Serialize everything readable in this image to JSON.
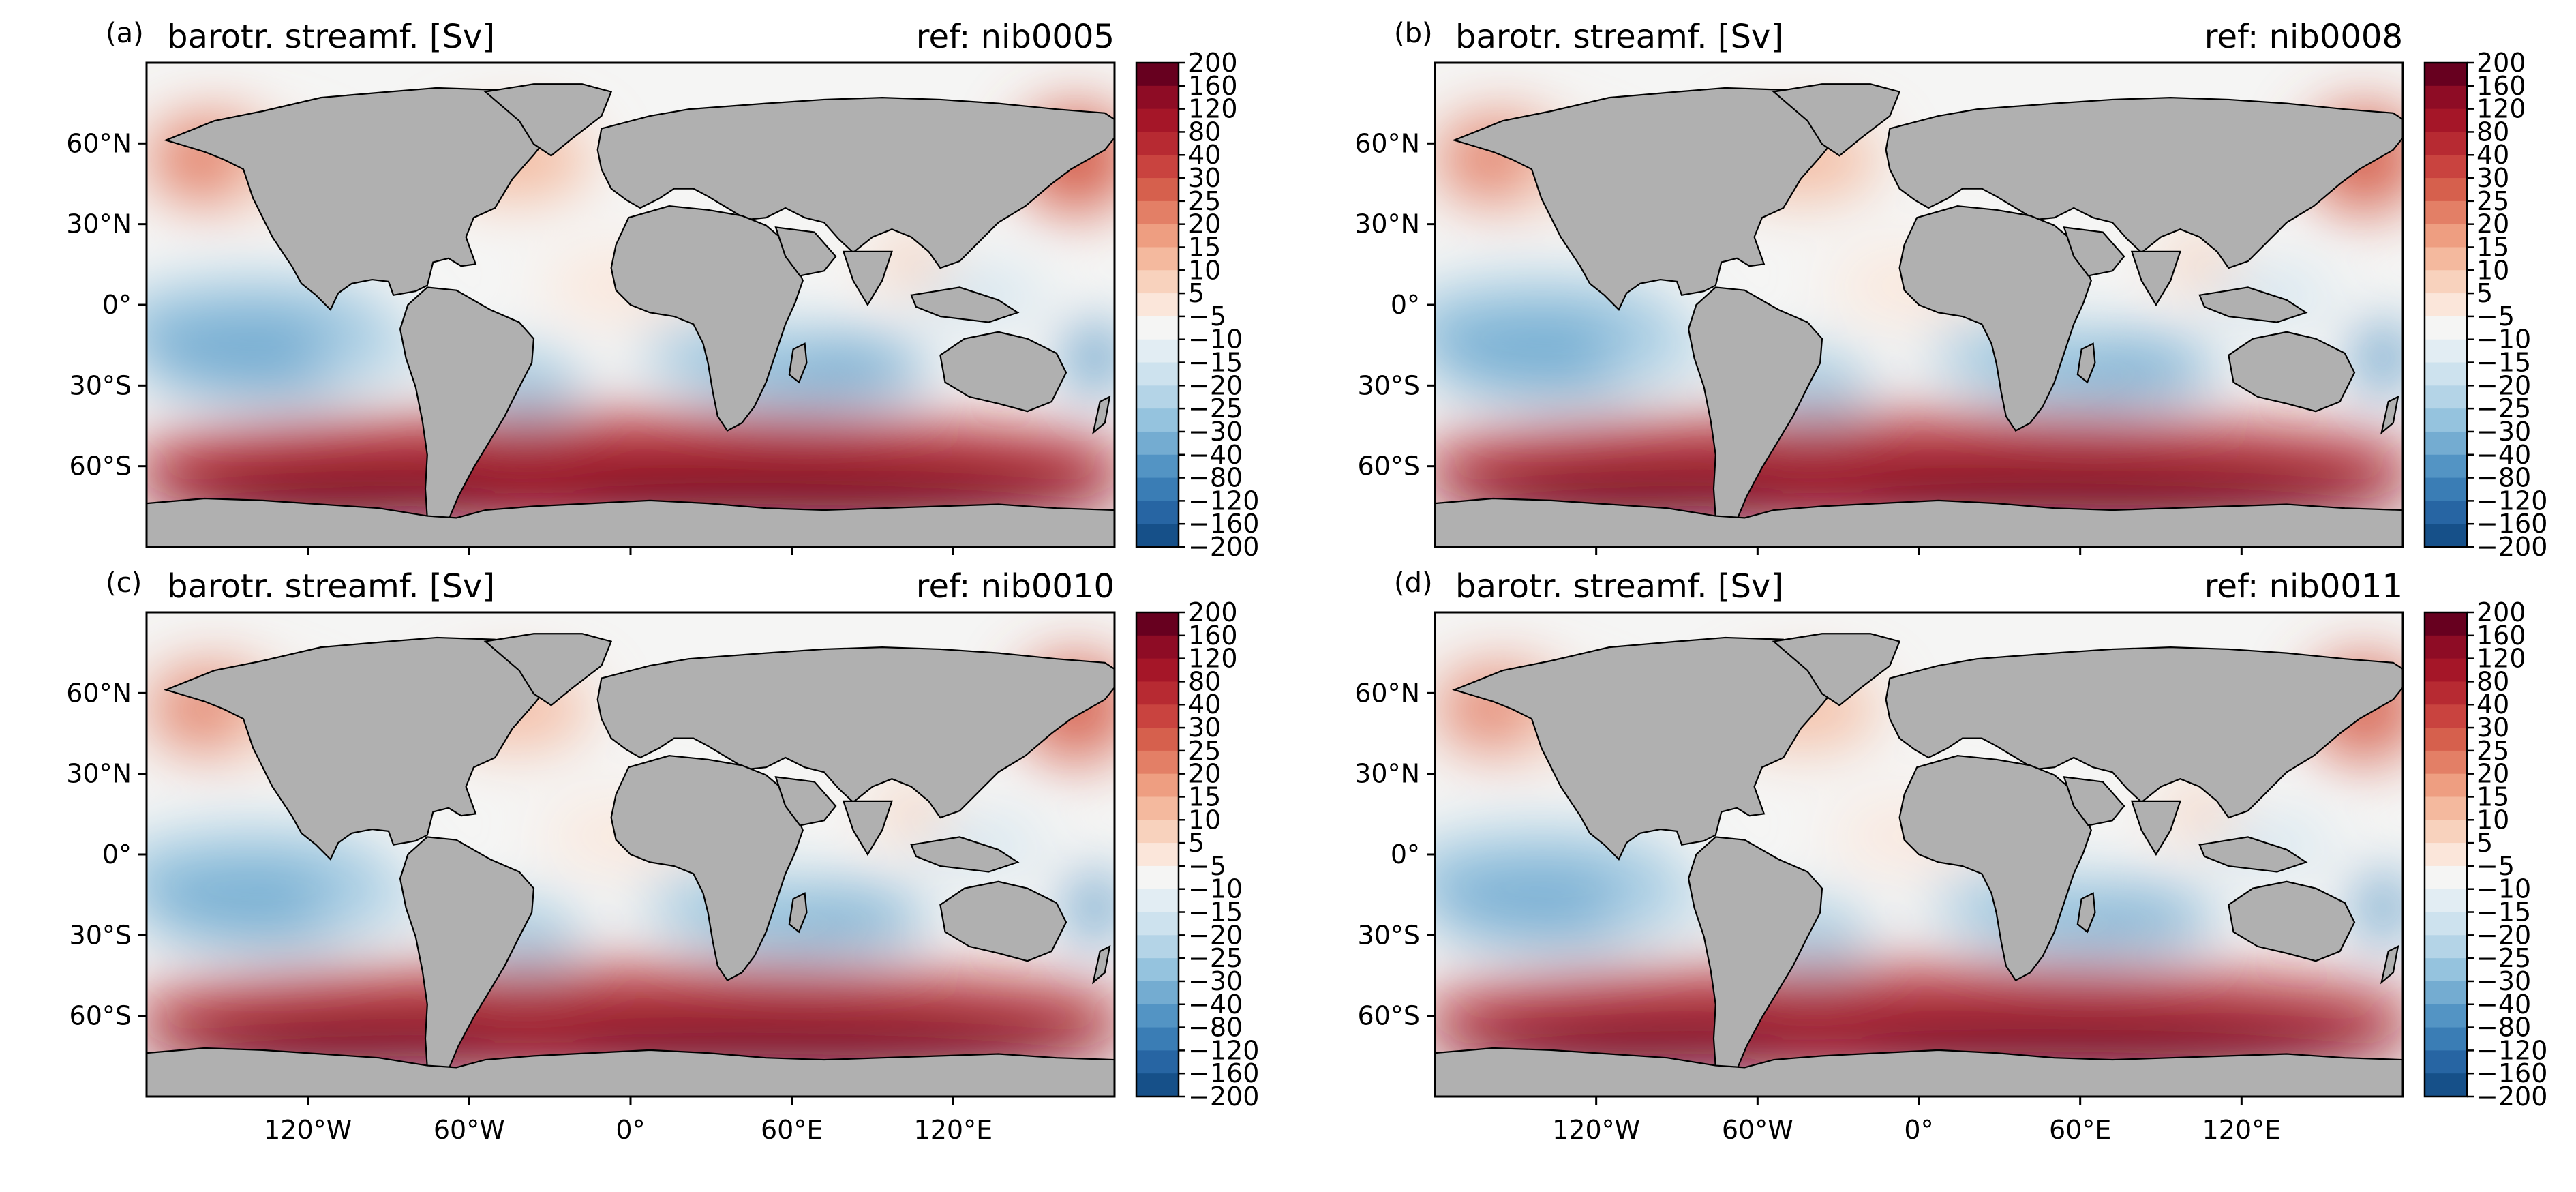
{
  "figure": {
    "panels": [
      {
        "id": "a",
        "label": "(a)",
        "title": "barotr. streamf. [Sv]",
        "ref": "ref: nib0005",
        "intensity": 1.0
      },
      {
        "id": "b",
        "label": "(b)",
        "title": "barotr. streamf. [Sv]",
        "ref": "ref: nib0008",
        "intensity": 0.9
      },
      {
        "id": "c",
        "label": "(c)",
        "title": "barotr. streamf. [Sv]",
        "ref": "ref: nib0010",
        "intensity": 0.82
      },
      {
        "id": "d",
        "label": "(d)",
        "title": "barotr. streamf. [Sv]",
        "ref": "ref: nib0011",
        "intensity": 0.78
      }
    ],
    "lat_ticks": [
      "60°N",
      "30°N",
      "0°",
      "30°S",
      "60°S"
    ],
    "lon_ticks": [
      "120°W",
      "60°W",
      "0°",
      "60°E",
      "120°E"
    ],
    "colorbar": {
      "unit": "Sv",
      "levels": [
        "200",
        "160",
        "120",
        "80",
        "40",
        "30",
        "25",
        "20",
        "15",
        "10",
        "5",
        "−5",
        "−10",
        "−15",
        "−20",
        "−25",
        "−30",
        "−40",
        "−80",
        "−120",
        "−160",
        "−200"
      ],
      "colors": [
        "#67001f",
        "#8e0c25",
        "#a51628",
        "#b72a32",
        "#c9433f",
        "#d6604d",
        "#e37f66",
        "#ee9e81",
        "#f4b99e",
        "#f8d2bd",
        "#fbe6da",
        "#f5f5f4",
        "#e2edf3",
        "#cde2ee",
        "#b4d4e7",
        "#95c3de",
        "#74acd1",
        "#5394c4",
        "#3a7db5",
        "#2765a3",
        "#165089",
        "#053061"
      ]
    },
    "colors": {
      "land": "#b0b0b0",
      "coast": "#000000",
      "ocean_neutral": "#f5f5f4"
    }
  }
}
